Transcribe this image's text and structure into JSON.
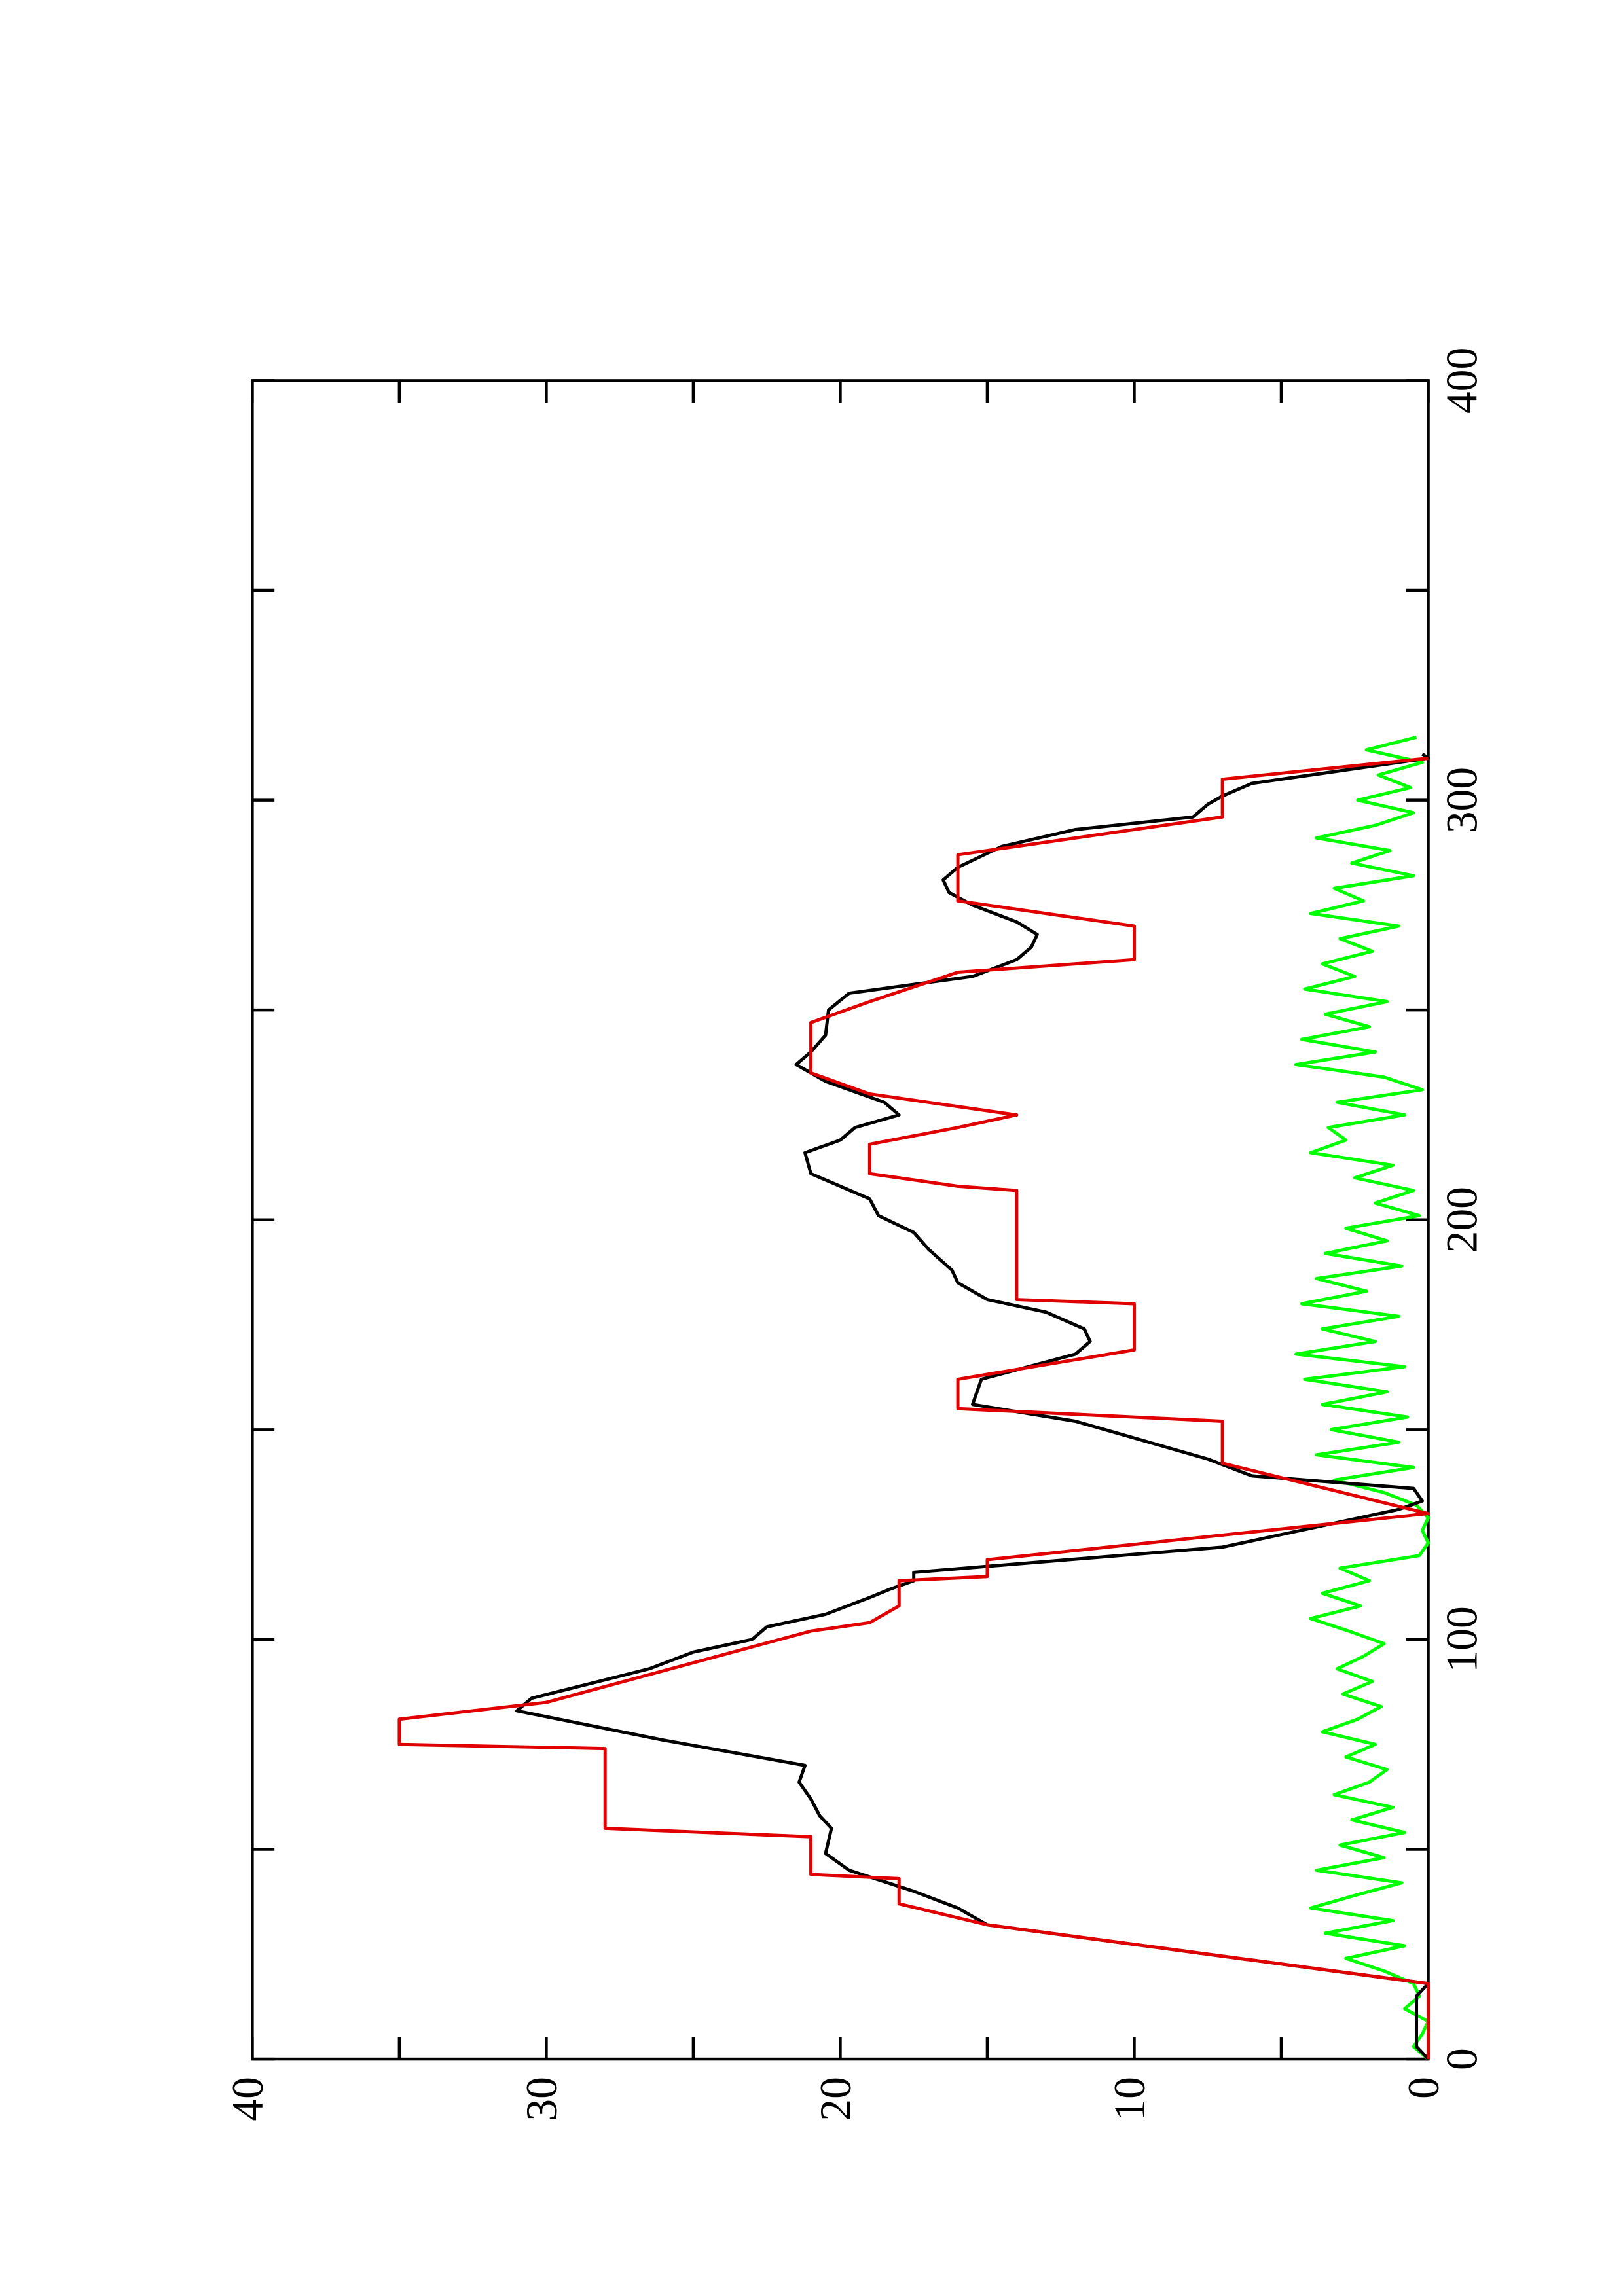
{
  "chart_data": {
    "type": "line",
    "xlim": [
      0,
      400
    ],
    "xticks": [
      0,
      100,
      200,
      300,
      400
    ],
    "xminor_ticks": [
      50,
      150,
      250,
      350
    ],
    "ylim": [
      0,
      40
    ],
    "yticks": [
      0,
      10,
      20,
      30,
      40
    ],
    "yminor_ticks": [
      5,
      15,
      25,
      35
    ],
    "series": [
      {
        "color": "#00ff00",
        "x": [
          0,
          3,
          6,
          9,
          12,
          15,
          18,
          21,
          24,
          27,
          30,
          33,
          36,
          39,
          42,
          45,
          48,
          51,
          54,
          57,
          60,
          63,
          66,
          69,
          72,
          75,
          78,
          81,
          84,
          87,
          90,
          93,
          96,
          99,
          102,
          105,
          108,
          111,
          114,
          117,
          120,
          123,
          126,
          129,
          132,
          135,
          138,
          141,
          144,
          147,
          150,
          153,
          156,
          159,
          162,
          165,
          168,
          171,
          174,
          177,
          180,
          183,
          186,
          189,
          192,
          195,
          198,
          201,
          204,
          207,
          210,
          213,
          216,
          219,
          222,
          225,
          228,
          231,
          234,
          237,
          240,
          243,
          246,
          249,
          252,
          255,
          258,
          261,
          264,
          267,
          270,
          273,
          276,
          279,
          282,
          285,
          288,
          291,
          294,
          297,
          300,
          303,
          306,
          309,
          312,
          315
        ],
        "values": [
          0,
          0.5,
          0.2,
          0,
          0.8,
          0.3,
          0.5,
          1.5,
          2.8,
          0.8,
          3.5,
          1.2,
          4,
          2.5,
          0.9,
          3.8,
          1.5,
          3,
          0.8,
          2.6,
          1.2,
          3.2,
          2,
          1.4,
          2.8,
          1.8,
          3.6,
          2.4,
          1.6,
          2.9,
          1.9,
          3.1,
          2.2,
          1.5,
          2.7,
          4,
          2.3,
          3.6,
          2,
          3,
          0.3,
          0,
          0.2,
          0,
          0.4,
          1.5,
          3.2,
          0.5,
          3.8,
          1,
          3.3,
          0.7,
          3.6,
          1.4,
          4.2,
          0.8,
          4.5,
          1.8,
          3.6,
          1,
          4.3,
          2.1,
          3.8,
          0.9,
          3.5,
          1.4,
          2.8,
          0.3,
          1.8,
          0.5,
          2.5,
          1.2,
          4,
          2.8,
          3.4,
          0.8,
          3.1,
          0.2,
          1.5,
          4.5,
          1.8,
          4.3,
          2,
          3.5,
          1.4,
          4.2,
          2.5,
          3.6,
          1.9,
          3,
          1,
          4,
          2.2,
          3.2,
          0.5,
          2.6,
          1.3,
          3.8,
          1.8,
          0.5,
          2.4,
          0.6,
          1.7,
          0.2,
          2.1,
          0.4
        ]
      },
      {
        "color": "#000000",
        "x": [
          0,
          3,
          15,
          18,
          32,
          36,
          40,
          45,
          49,
          55,
          58,
          62,
          66,
          70,
          72,
          76,
          83,
          86,
          93,
          97,
          100,
          103,
          106,
          110,
          112,
          114,
          116,
          122,
          125,
          131,
          133,
          136,
          139,
          143,
          148,
          152,
          156,
          160,
          162,
          168,
          171,
          174,
          178,
          181,
          185,
          188,
          193,
          197,
          201,
          205,
          208,
          211,
          216,
          219,
          222,
          225,
          228,
          230,
          233,
          237,
          240,
          244,
          250,
          254,
          258,
          262,
          265,
          268,
          271,
          275,
          278,
          281,
          284,
          289,
          293,
          296,
          299,
          301,
          304,
          310,
          311
        ],
        "values": [
          0,
          0.4,
          0.4,
          0,
          15,
          16,
          17.5,
          19.7,
          20.5,
          20.3,
          20.7,
          21,
          21.4,
          21.2,
          22.8,
          26,
          31,
          30.5,
          26.5,
          25,
          23,
          22.5,
          20.5,
          19,
          18.3,
          17.5,
          17.5,
          7,
          5,
          1,
          0.2,
          0.5,
          6,
          7.5,
          10,
          12,
          15.5,
          15.3,
          15.2,
          12,
          11.5,
          11.7,
          13,
          15,
          16,
          16.2,
          17,
          17.5,
          18.7,
          19,
          20,
          21,
          21.2,
          20,
          19.5,
          18,
          18.5,
          19.3,
          20.5,
          21.5,
          21,
          20.5,
          20.4,
          19.7,
          15.5,
          14,
          13.5,
          13.3,
          14,
          15.5,
          16.3,
          16.5,
          16,
          14.5,
          12,
          8,
          7.5,
          7,
          6,
          0,
          0.2
        ]
      },
      {
        "color": "#e00000",
        "x": [
          0,
          18,
          32,
          37,
          43,
          44,
          53,
          55,
          74,
          75,
          81,
          85,
          102,
          104,
          108,
          114,
          115,
          119,
          130,
          142,
          152,
          155,
          162,
          169,
          180,
          181,
          207,
          208,
          211,
          218,
          222,
          225,
          230,
          235,
          247,
          252,
          259,
          260,
          262,
          270,
          276,
          287,
          296,
          305,
          310
        ],
        "values": [
          0,
          0,
          15,
          18,
          18,
          21,
          21,
          28,
          28,
          35,
          35,
          30,
          21,
          19,
          18,
          18,
          15,
          15,
          0,
          7,
          7,
          16,
          16,
          10,
          10,
          14,
          14,
          16,
          19,
          19,
          16,
          14,
          19,
          21,
          21,
          19,
          16,
          14,
          10,
          10,
          16,
          16,
          7,
          7,
          0
        ]
      }
    ]
  }
}
